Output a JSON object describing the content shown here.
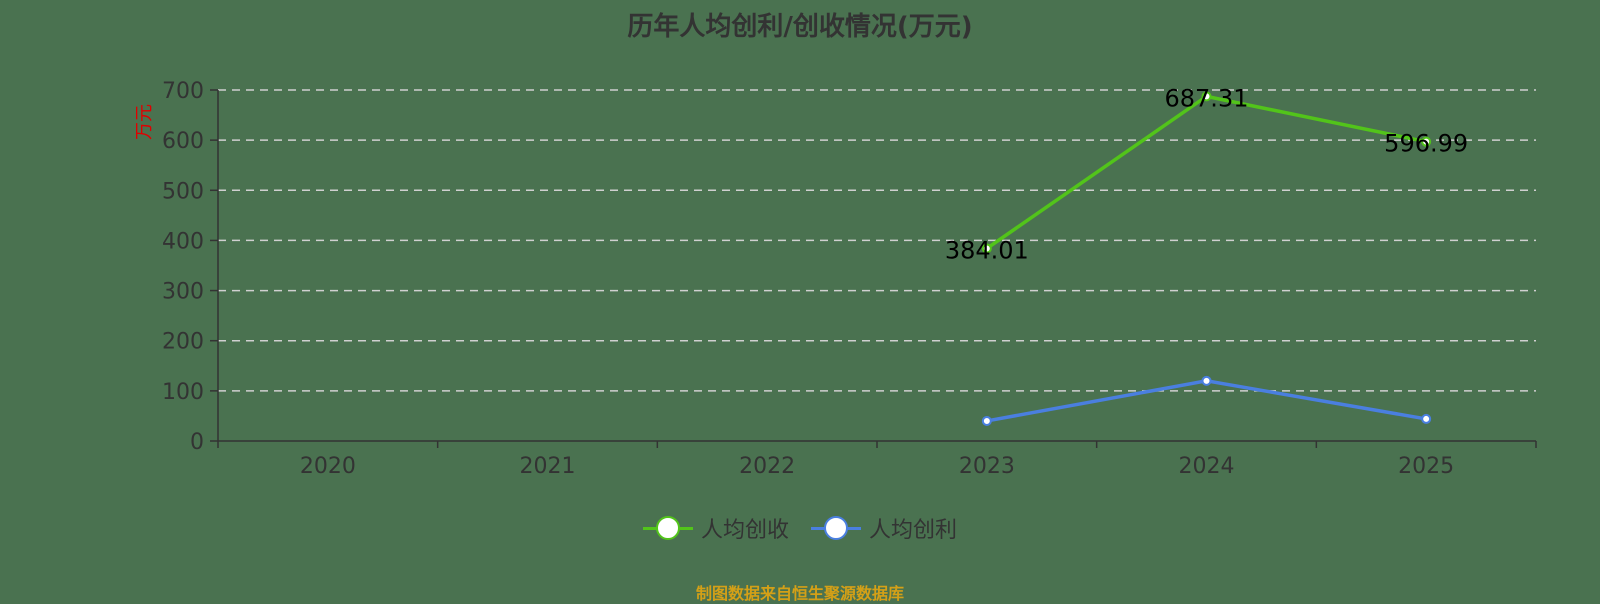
{
  "chart_data": {
    "type": "line",
    "title": "历年人均创利/创收情况(万元)",
    "xlabel": "",
    "ylabel": "万元",
    "categories": [
      "2020",
      "2021",
      "2022",
      "2023",
      "2024",
      "2025"
    ],
    "ylim": [
      0,
      700
    ],
    "yticks": [
      0,
      100,
      200,
      300,
      400,
      500,
      600,
      700
    ],
    "grid": true,
    "legend_position": "bottom",
    "series": [
      {
        "name": "人均创收",
        "color": "#52c41a",
        "values": [
          null,
          null,
          null,
          384.01,
          687.31,
          596.99
        ],
        "labels": [
          "",
          "",
          "",
          "384.01",
          "687.31",
          "596.99"
        ]
      },
      {
        "name": "人均创利",
        "color": "#4a7fe0",
        "values": [
          null,
          null,
          null,
          40,
          120,
          44
        ],
        "labels": []
      }
    ]
  },
  "title": "历年人均创利/创收情况(万元)",
  "y_axis_label": "万元",
  "legend": [
    {
      "label": "人均创收",
      "color": "#52c41a"
    },
    {
      "label": "人均创利",
      "color": "#4a7fe0"
    }
  ],
  "source": "制图数据来自恒生聚源数据库"
}
